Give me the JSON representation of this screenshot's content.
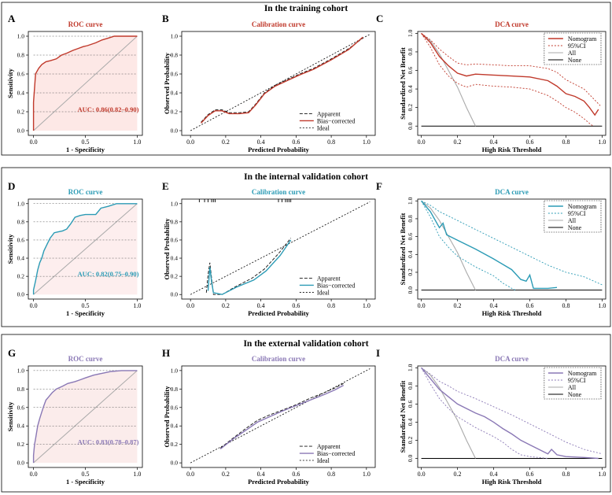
{
  "cohort_titles": [
    "In the training cohort",
    "In the internal validation cohort",
    "In the external validation cohort"
  ],
  "panel_letters": [
    "A",
    "B",
    "C",
    "D",
    "E",
    "F",
    "G",
    "H",
    "I"
  ],
  "colors": {
    "training": "#c0392b",
    "internal": "#2b9bb5",
    "external": "#8a78b5"
  },
  "chart_data": [
    {
      "type": "line",
      "id": "A",
      "title": "ROC curve",
      "xlabel": "1 - Specificity",
      "ylabel": "Sensitivity",
      "ticks": [
        "0.0",
        "0.5",
        "1.0"
      ],
      "yticks": [
        "0.0",
        "0.2",
        "0.4",
        "0.6",
        "0.8",
        "1.0"
      ],
      "annotation": "AUC: 0.86(0.82–0.90)",
      "roc": [
        [
          0,
          0
        ],
        [
          0,
          0.3
        ],
        [
          0.02,
          0.6
        ],
        [
          0.03,
          0.62
        ],
        [
          0.05,
          0.66
        ],
        [
          0.08,
          0.7
        ],
        [
          0.12,
          0.73
        ],
        [
          0.16,
          0.74
        ],
        [
          0.22,
          0.76
        ],
        [
          0.27,
          0.8
        ],
        [
          0.32,
          0.82
        ],
        [
          0.38,
          0.85
        ],
        [
          0.43,
          0.87
        ],
        [
          0.48,
          0.89
        ],
        [
          0.52,
          0.9
        ],
        [
          0.6,
          0.93
        ],
        [
          0.66,
          0.96
        ],
        [
          0.72,
          0.98
        ],
        [
          0.78,
          1.0
        ],
        [
          1,
          1
        ]
      ]
    },
    {
      "type": "line",
      "id": "B",
      "title": "Calibration curve",
      "xlabel": "Predicted Probability",
      "ylabel": "Observed Probability",
      "ticks": [
        "0.0",
        "0.2",
        "0.4",
        "0.6",
        "0.8",
        "1.0"
      ],
      "legend": [
        "Apparent",
        "Bias−corrected",
        "Ideal"
      ],
      "apparent": [
        [
          0.06,
          0.09
        ],
        [
          0.1,
          0.17
        ],
        [
          0.14,
          0.22
        ],
        [
          0.18,
          0.22
        ],
        [
          0.22,
          0.19
        ],
        [
          0.28,
          0.19
        ],
        [
          0.33,
          0.2
        ],
        [
          0.37,
          0.28
        ],
        [
          0.42,
          0.4
        ],
        [
          0.48,
          0.48
        ],
        [
          0.55,
          0.54
        ],
        [
          0.62,
          0.6
        ],
        [
          0.7,
          0.66
        ],
        [
          0.8,
          0.76
        ],
        [
          0.9,
          0.87
        ],
        [
          0.98,
          0.98
        ]
      ],
      "corrected": [
        [
          0.06,
          0.08
        ],
        [
          0.1,
          0.16
        ],
        [
          0.14,
          0.21
        ],
        [
          0.18,
          0.21
        ],
        [
          0.22,
          0.18
        ],
        [
          0.28,
          0.18
        ],
        [
          0.33,
          0.19
        ],
        [
          0.37,
          0.27
        ],
        [
          0.42,
          0.39
        ],
        [
          0.48,
          0.47
        ],
        [
          0.55,
          0.53
        ],
        [
          0.62,
          0.59
        ],
        [
          0.7,
          0.65
        ],
        [
          0.8,
          0.75
        ],
        [
          0.9,
          0.86
        ],
        [
          0.98,
          0.99
        ]
      ]
    },
    {
      "type": "line",
      "id": "C",
      "title": "DCA curve",
      "xlabel": "High Risk Threshold",
      "ylabel": "Standardized Net Benefit",
      "ticks": [
        "0.0",
        "0.2",
        "0.4",
        "0.6",
        "0.8",
        "1.0"
      ],
      "yticks": [
        "0.0",
        "0.2",
        "0.4",
        "0.6",
        "0.8",
        "1.0"
      ],
      "legend": [
        "Nomogram",
        "95%CI",
        "All",
        "None"
      ],
      "nomogram": [
        [
          0,
          1
        ],
        [
          0.05,
          0.9
        ],
        [
          0.1,
          0.75
        ],
        [
          0.15,
          0.65
        ],
        [
          0.2,
          0.57
        ],
        [
          0.25,
          0.54
        ],
        [
          0.3,
          0.56
        ],
        [
          0.4,
          0.55
        ],
        [
          0.5,
          0.54
        ],
        [
          0.6,
          0.53
        ],
        [
          0.7,
          0.49
        ],
        [
          0.75,
          0.43
        ],
        [
          0.8,
          0.35
        ],
        [
          0.85,
          0.32
        ],
        [
          0.9,
          0.27
        ],
        [
          0.93,
          0.2
        ],
        [
          0.96,
          0.12
        ],
        [
          0.98,
          0.18
        ]
      ],
      "ci_upper": [
        [
          0,
          1
        ],
        [
          0.05,
          0.93
        ],
        [
          0.1,
          0.83
        ],
        [
          0.15,
          0.75
        ],
        [
          0.2,
          0.68
        ],
        [
          0.25,
          0.66
        ],
        [
          0.3,
          0.67
        ],
        [
          0.4,
          0.66
        ],
        [
          0.5,
          0.65
        ],
        [
          0.6,
          0.65
        ],
        [
          0.7,
          0.62
        ],
        [
          0.75,
          0.58
        ],
        [
          0.8,
          0.5
        ],
        [
          0.85,
          0.45
        ],
        [
          0.9,
          0.4
        ],
        [
          0.93,
          0.34
        ],
        [
          0.97,
          0.26
        ],
        [
          0.99,
          0.22
        ]
      ],
      "ci_lower": [
        [
          0,
          1
        ],
        [
          0.05,
          0.85
        ],
        [
          0.1,
          0.66
        ],
        [
          0.15,
          0.54
        ],
        [
          0.2,
          0.46
        ],
        [
          0.25,
          0.42
        ],
        [
          0.3,
          0.45
        ],
        [
          0.4,
          0.43
        ],
        [
          0.5,
          0.42
        ],
        [
          0.6,
          0.4
        ],
        [
          0.7,
          0.33
        ],
        [
          0.75,
          0.27
        ],
        [
          0.8,
          0.2
        ],
        [
          0.85,
          0.15
        ],
        [
          0.9,
          0.08
        ],
        [
          0.93,
          0.03
        ],
        [
          0.95,
          0.0
        ]
      ],
      "all": [
        [
          0,
          1
        ],
        [
          0.05,
          0.92
        ],
        [
          0.1,
          0.78
        ],
        [
          0.15,
          0.6
        ],
        [
          0.2,
          0.42
        ],
        [
          0.25,
          0.2
        ],
        [
          0.3,
          0.0
        ]
      ]
    },
    {
      "type": "line",
      "id": "D",
      "title": "ROC curve",
      "xlabel": "1 - Specificity",
      "ylabel": "Sensitivity",
      "ticks": [
        "0.0",
        "0.5",
        "1.0"
      ],
      "yticks": [
        "0.0",
        "0.2",
        "0.4",
        "0.6",
        "0.8",
        "1.0"
      ],
      "annotation": "AUC: 0.82(0.75–0.90)",
      "roc": [
        [
          0,
          0
        ],
        [
          0,
          0.05
        ],
        [
          0.02,
          0.15
        ],
        [
          0.04,
          0.27
        ],
        [
          0.06,
          0.35
        ],
        [
          0.08,
          0.4
        ],
        [
          0.1,
          0.48
        ],
        [
          0.13,
          0.55
        ],
        [
          0.16,
          0.62
        ],
        [
          0.2,
          0.68
        ],
        [
          0.24,
          0.69
        ],
        [
          0.28,
          0.7
        ],
        [
          0.32,
          0.72
        ],
        [
          0.36,
          0.78
        ],
        [
          0.4,
          0.85
        ],
        [
          0.45,
          0.87
        ],
        [
          0.5,
          0.88
        ],
        [
          0.55,
          0.88
        ],
        [
          0.6,
          0.88
        ],
        [
          0.65,
          0.95
        ],
        [
          0.72,
          0.97
        ],
        [
          0.8,
          1.0
        ],
        [
          1,
          1
        ]
      ]
    },
    {
      "type": "line",
      "id": "E",
      "title": "Calibration curve",
      "xlabel": "Predicted Probability",
      "ylabel": "Observed Probability",
      "ticks": [
        "0.0",
        "0.2",
        "0.4",
        "0.6",
        "0.8",
        "1.0"
      ],
      "legend": [
        "Apparent",
        "Bias−corrected",
        "Ideal"
      ],
      "apparent": [
        [
          0.09,
          0.02
        ],
        [
          0.1,
          0.22
        ],
        [
          0.11,
          0.35
        ],
        [
          0.12,
          0.18
        ],
        [
          0.13,
          0.0
        ],
        [
          0.18,
          0.0
        ],
        [
          0.25,
          0.08
        ],
        [
          0.35,
          0.18
        ],
        [
          0.42,
          0.28
        ],
        [
          0.5,
          0.45
        ],
        [
          0.57,
          0.62
        ]
      ],
      "corrected": [
        [
          0.1,
          0.04
        ],
        [
          0.11,
          0.3
        ],
        [
          0.12,
          0.14
        ],
        [
          0.13,
          0.02
        ],
        [
          0.18,
          0.0
        ],
        [
          0.26,
          0.08
        ],
        [
          0.36,
          0.16
        ],
        [
          0.43,
          0.26
        ],
        [
          0.51,
          0.43
        ],
        [
          0.57,
          0.6
        ]
      ]
    },
    {
      "type": "line",
      "id": "F",
      "title": "DCA curve",
      "xlabel": "High Risk Threshold",
      "ylabel": "Standardized Net Benefit",
      "ticks": [
        "0.0",
        "0.2",
        "0.4",
        "0.6",
        "0.8",
        "1.0"
      ],
      "yticks": [
        "0.0",
        "0.2",
        "0.4",
        "0.6",
        "0.8",
        "1.0"
      ],
      "legend": [
        "Nomogram",
        "95%CI",
        "All",
        "None"
      ],
      "nomogram": [
        [
          0,
          1
        ],
        [
          0.05,
          0.88
        ],
        [
          0.1,
          0.7
        ],
        [
          0.12,
          0.75
        ],
        [
          0.14,
          0.62
        ],
        [
          0.2,
          0.56
        ],
        [
          0.3,
          0.46
        ],
        [
          0.4,
          0.35
        ],
        [
          0.5,
          0.23
        ],
        [
          0.55,
          0.12
        ],
        [
          0.58,
          0.1
        ],
        [
          0.6,
          0.17
        ],
        [
          0.62,
          0.02
        ],
        [
          0.7,
          0.02
        ],
        [
          0.75,
          0.03
        ]
      ],
      "ci_upper": [
        [
          0,
          1
        ],
        [
          0.05,
          0.95
        ],
        [
          0.1,
          0.88
        ],
        [
          0.15,
          0.83
        ],
        [
          0.2,
          0.78
        ],
        [
          0.3,
          0.68
        ],
        [
          0.4,
          0.58
        ],
        [
          0.5,
          0.48
        ],
        [
          0.6,
          0.38
        ],
        [
          0.7,
          0.28
        ],
        [
          0.8,
          0.2
        ],
        [
          0.9,
          0.15
        ],
        [
          1.0,
          0.06
        ]
      ],
      "ci_lower": [
        [
          0,
          1
        ],
        [
          0.05,
          0.82
        ],
        [
          0.1,
          0.6
        ],
        [
          0.15,
          0.48
        ],
        [
          0.2,
          0.38
        ],
        [
          0.3,
          0.26
        ],
        [
          0.4,
          0.16
        ],
        [
          0.45,
          0.08
        ],
        [
          0.5,
          0.02
        ],
        [
          0.52,
          0.0
        ]
      ],
      "all": [
        [
          0,
          1
        ],
        [
          0.05,
          0.92
        ],
        [
          0.1,
          0.78
        ],
        [
          0.15,
          0.6
        ],
        [
          0.2,
          0.42
        ],
        [
          0.25,
          0.2
        ],
        [
          0.3,
          0.0
        ]
      ]
    },
    {
      "type": "line",
      "id": "G",
      "title": "ROC curve",
      "xlabel": "1 - Specificity",
      "ylabel": "Sensitivity",
      "ticks": [
        "0.0",
        "0.5",
        "1.0"
      ],
      "yticks": [
        "0.0",
        "0.2",
        "0.4",
        "0.6",
        "0.8",
        "1.0"
      ],
      "annotation": "AUC: 0.83(0.78–0.87)",
      "roc": [
        [
          0,
          0
        ],
        [
          0,
          0.08
        ],
        [
          0.01,
          0.2
        ],
        [
          0.02,
          0.26
        ],
        [
          0.04,
          0.4
        ],
        [
          0.06,
          0.48
        ],
        [
          0.08,
          0.55
        ],
        [
          0.1,
          0.62
        ],
        [
          0.12,
          0.68
        ],
        [
          0.15,
          0.72
        ],
        [
          0.18,
          0.76
        ],
        [
          0.22,
          0.8
        ],
        [
          0.28,
          0.83
        ],
        [
          0.33,
          0.86
        ],
        [
          0.4,
          0.88
        ],
        [
          0.45,
          0.9
        ],
        [
          0.5,
          0.92
        ],
        [
          0.58,
          0.95
        ],
        [
          0.66,
          0.97
        ],
        [
          0.75,
          0.99
        ],
        [
          0.85,
          1.0
        ],
        [
          1,
          1
        ]
      ]
    },
    {
      "type": "line",
      "id": "H",
      "title": "Calibration curve",
      "xlabel": "Predicted Probability",
      "ylabel": "Observed Probability",
      "ticks": [
        "0.0",
        "0.2",
        "0.4",
        "0.6",
        "0.8",
        "1.0"
      ],
      "legend": [
        "Apparent",
        "Bias−corrected",
        "Ideal"
      ],
      "apparent": [
        [
          0.17,
          0.16
        ],
        [
          0.25,
          0.28
        ],
        [
          0.32,
          0.38
        ],
        [
          0.38,
          0.46
        ],
        [
          0.45,
          0.52
        ],
        [
          0.52,
          0.57
        ],
        [
          0.6,
          0.63
        ],
        [
          0.68,
          0.7
        ],
        [
          0.76,
          0.76
        ],
        [
          0.82,
          0.81
        ],
        [
          0.87,
          0.86
        ]
      ],
      "corrected": [
        [
          0.17,
          0.15
        ],
        [
          0.25,
          0.27
        ],
        [
          0.32,
          0.36
        ],
        [
          0.38,
          0.44
        ],
        [
          0.45,
          0.5
        ],
        [
          0.52,
          0.56
        ],
        [
          0.6,
          0.62
        ],
        [
          0.68,
          0.68
        ],
        [
          0.76,
          0.74
        ],
        [
          0.82,
          0.79
        ],
        [
          0.87,
          0.84
        ]
      ]
    },
    {
      "type": "line",
      "id": "I",
      "title": "DCA curve",
      "xlabel": "High Risk Threshold",
      "ylabel": "Standardized Net Benefit",
      "ticks": [
        "0.0",
        "0.2",
        "0.4",
        "0.6",
        "0.8",
        "1.0"
      ],
      "yticks": [
        "0.0",
        "0.2",
        "0.4",
        "0.6",
        "0.8",
        "1.0"
      ],
      "legend": [
        "Nomogram",
        "95%CI",
        "All",
        "None"
      ],
      "nomogram": [
        [
          0,
          1
        ],
        [
          0.05,
          0.88
        ],
        [
          0.1,
          0.76
        ],
        [
          0.15,
          0.68
        ],
        [
          0.2,
          0.6
        ],
        [
          0.25,
          0.55
        ],
        [
          0.3,
          0.5
        ],
        [
          0.35,
          0.46
        ],
        [
          0.4,
          0.4
        ],
        [
          0.45,
          0.33
        ],
        [
          0.5,
          0.27
        ],
        [
          0.55,
          0.2
        ],
        [
          0.6,
          0.15
        ],
        [
          0.65,
          0.1
        ],
        [
          0.7,
          0.05
        ],
        [
          0.72,
          0.1
        ],
        [
          0.75,
          0.04
        ],
        [
          0.8,
          0.02
        ],
        [
          0.9,
          0.01
        ],
        [
          0.98,
          0.0
        ]
      ],
      "ci_upper": [
        [
          0,
          1
        ],
        [
          0.05,
          0.93
        ],
        [
          0.1,
          0.85
        ],
        [
          0.15,
          0.8
        ],
        [
          0.2,
          0.74
        ],
        [
          0.3,
          0.66
        ],
        [
          0.4,
          0.57
        ],
        [
          0.5,
          0.48
        ],
        [
          0.6,
          0.38
        ],
        [
          0.7,
          0.28
        ],
        [
          0.8,
          0.18
        ],
        [
          0.9,
          0.1
        ],
        [
          1.0,
          0.05
        ]
      ],
      "ci_lower": [
        [
          0,
          1
        ],
        [
          0.05,
          0.82
        ],
        [
          0.1,
          0.66
        ],
        [
          0.15,
          0.55
        ],
        [
          0.2,
          0.46
        ],
        [
          0.3,
          0.34
        ],
        [
          0.4,
          0.24
        ],
        [
          0.45,
          0.18
        ],
        [
          0.5,
          0.1
        ],
        [
          0.55,
          0.04
        ],
        [
          0.6,
          0.02
        ],
        [
          0.7,
          0.0
        ]
      ],
      "all": [
        [
          0,
          1
        ],
        [
          0.05,
          0.92
        ],
        [
          0.1,
          0.78
        ],
        [
          0.15,
          0.6
        ],
        [
          0.2,
          0.42
        ],
        [
          0.25,
          0.2
        ],
        [
          0.3,
          0.0
        ]
      ]
    }
  ]
}
